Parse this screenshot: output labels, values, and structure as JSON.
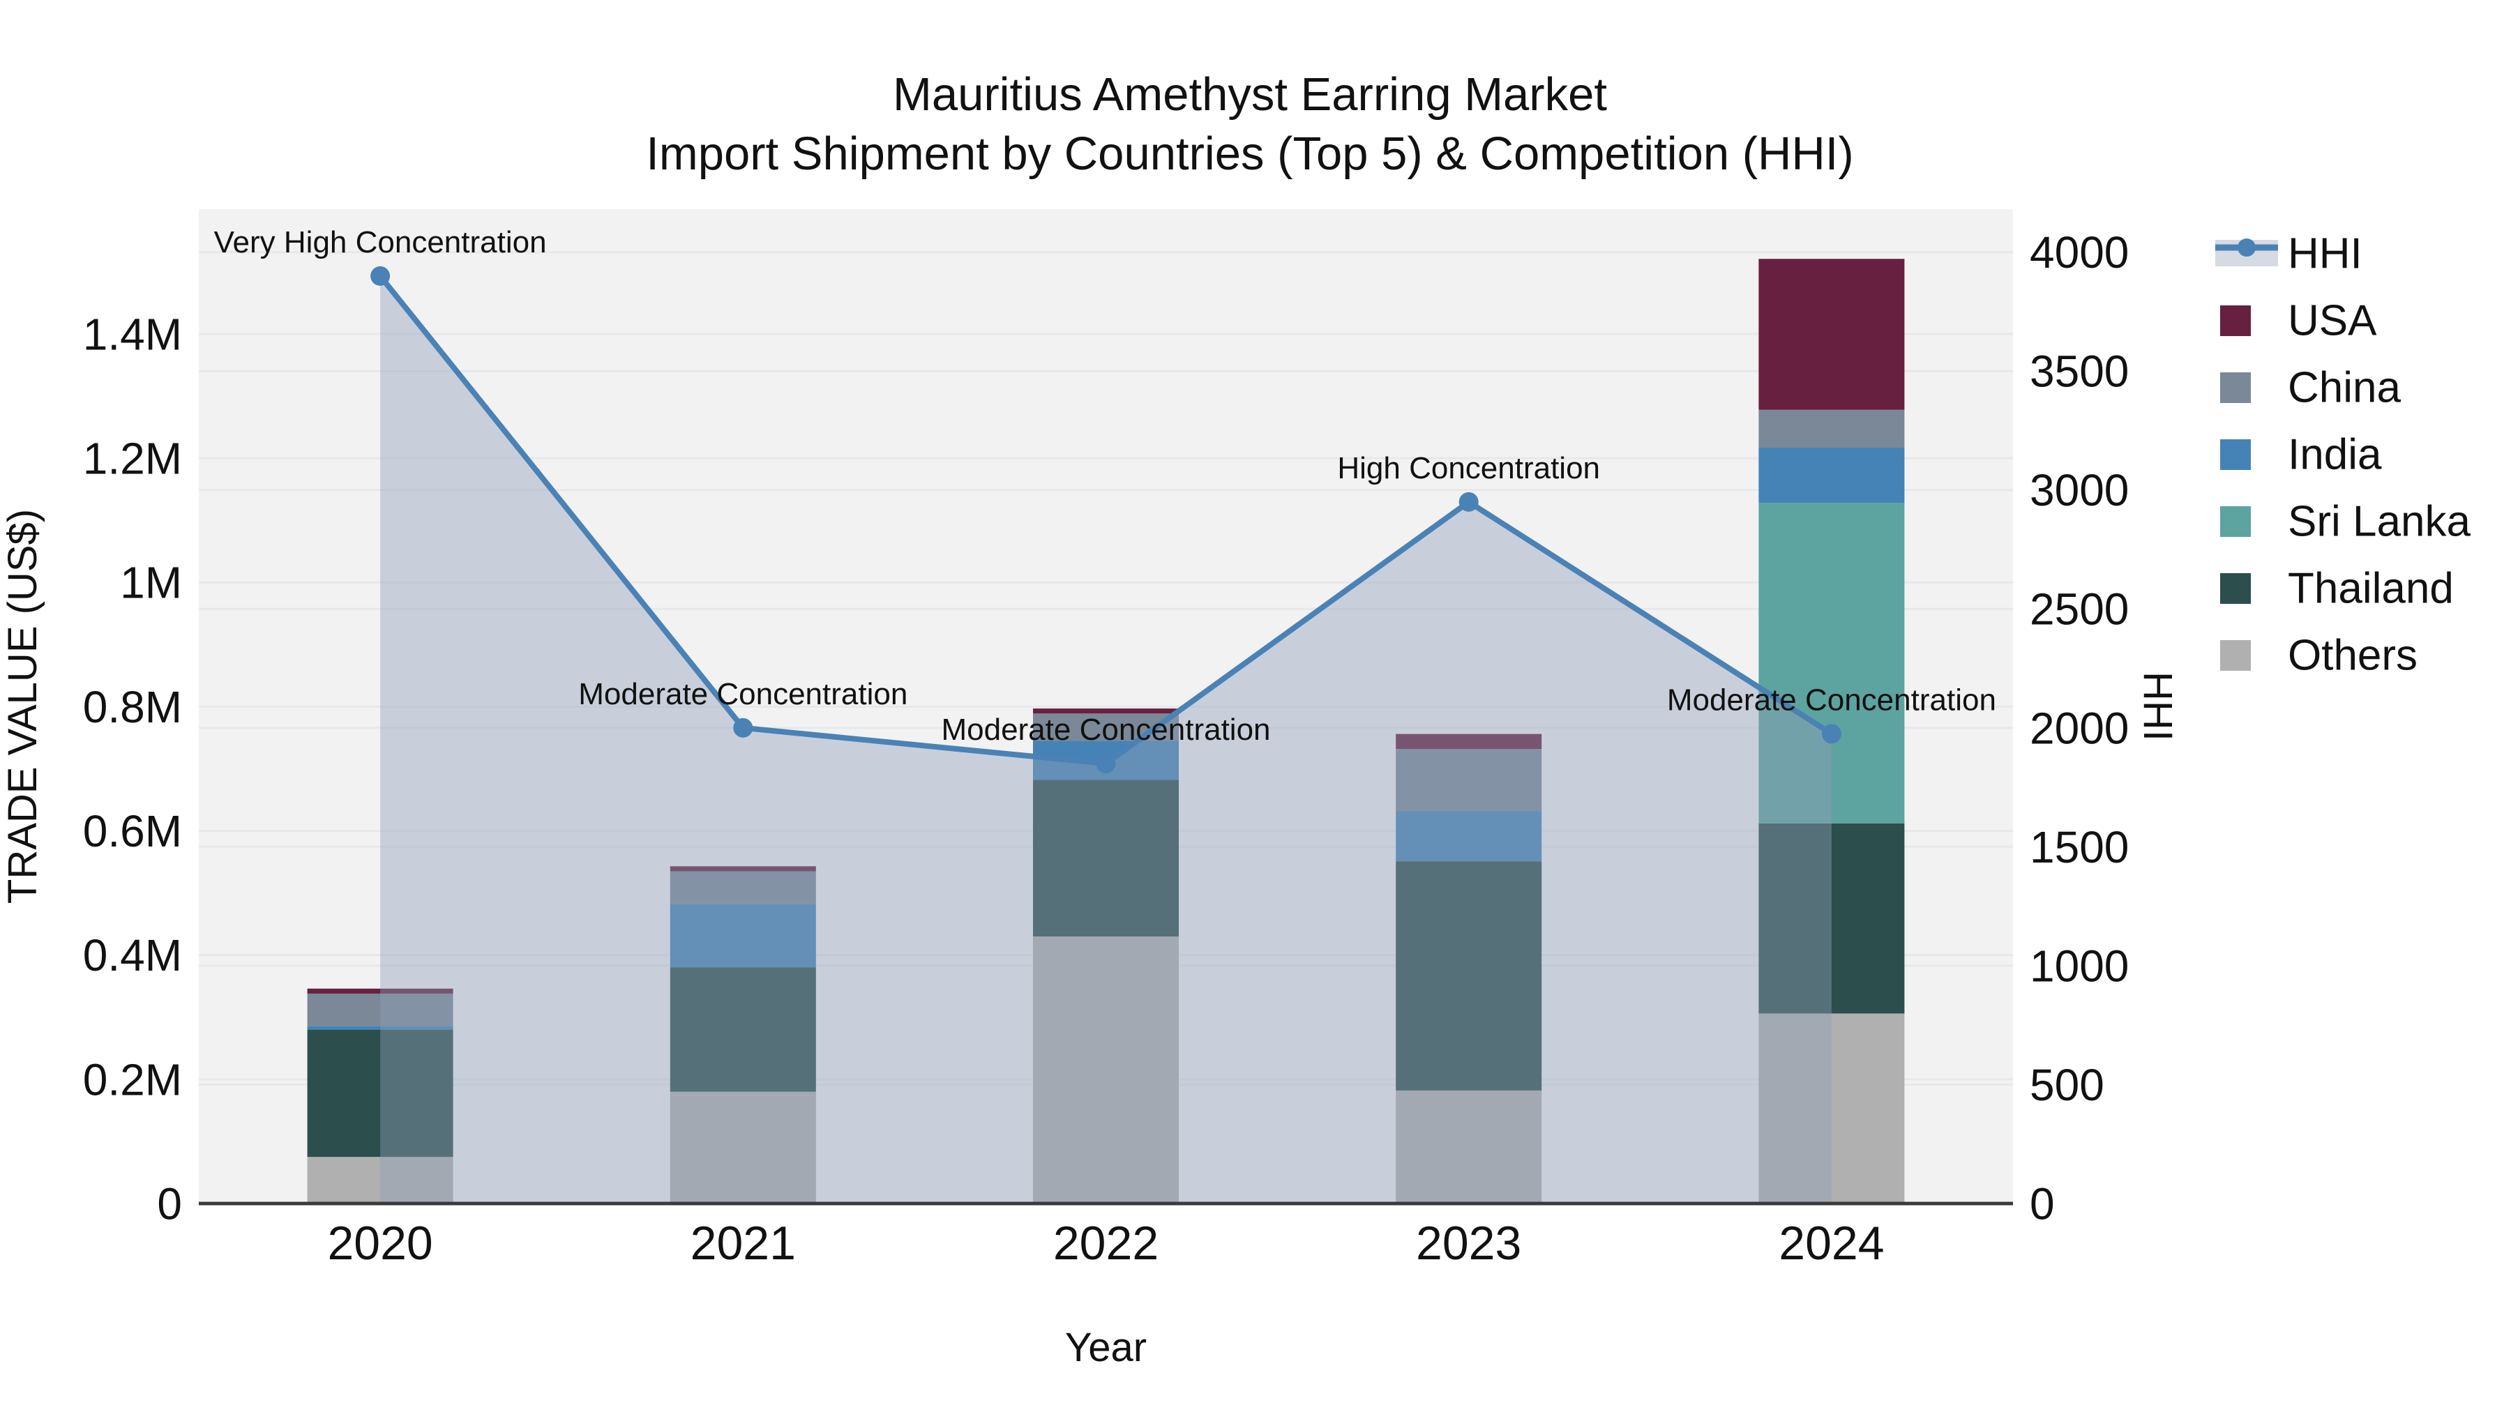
{
  "chart_data": {
    "type": "bar+line-dual-axis",
    "title": {
      "line1": "Mauritius Amethyst Earring Market",
      "line2": "Import Shipment by Countries (Top 5) & Competition (HHI)"
    },
    "xlabel": "Year",
    "ylabel_left": "TRADE VALUE (US$)",
    "ylabel_right": "HHI",
    "categories": [
      "2020",
      "2021",
      "2022",
      "2023",
      "2024"
    ],
    "ylim_left": [
      0,
      1601000
    ],
    "ylim_right": [
      0,
      4181
    ],
    "grid": "on",
    "legend_position": "right",
    "y_left_ticks": [
      {
        "v": 0,
        "label": "0"
      },
      {
        "v": 200000,
        "label": "0.2M"
      },
      {
        "v": 400000,
        "label": "0.4M"
      },
      {
        "v": 600000,
        "label": "0.6M"
      },
      {
        "v": 800000,
        "label": "0.8M"
      },
      {
        "v": 1000000,
        "label": "1M"
      },
      {
        "v": 1200000,
        "label": "1.2M"
      },
      {
        "v": 1400000,
        "label": "1.4M"
      }
    ],
    "y_right_ticks": [
      {
        "v": 0,
        "label": "0"
      },
      {
        "v": 500,
        "label": "500"
      },
      {
        "v": 1000,
        "label": "1000"
      },
      {
        "v": 1500,
        "label": "1500"
      },
      {
        "v": 2000,
        "label": "2000"
      },
      {
        "v": 2500,
        "label": "2500"
      },
      {
        "v": 3000,
        "label": "3000"
      },
      {
        "v": 3500,
        "label": "3500"
      },
      {
        "v": 4000,
        "label": "4000"
      }
    ],
    "series": [
      {
        "name": "Others",
        "color": "#b0b0b0",
        "values": [
          75000,
          180000,
          430000,
          182000,
          306000
        ]
      },
      {
        "name": "Thailand",
        "color": "#2c4e4c",
        "values": [
          205000,
          200000,
          252000,
          369000,
          306000
        ]
      },
      {
        "name": "Sri Lanka",
        "color": "#5da3a0",
        "values": [
          0,
          0,
          0,
          0,
          516000
        ]
      },
      {
        "name": "India",
        "color": "#4583b6",
        "values": [
          6000,
          102000,
          63000,
          81000,
          89000
        ]
      },
      {
        "name": "China",
        "color": "#7a8897",
        "values": [
          52000,
          53000,
          44000,
          100000,
          61000
        ]
      },
      {
        "name": "USA",
        "color": "#67203f",
        "values": [
          8000,
          8000,
          8000,
          24000,
          243000
        ]
      }
    ],
    "hhi": {
      "name": "HHI",
      "color": "#4a82b6",
      "area_fill": "rgba(144,160,184,0.42)",
      "values": [
        3900,
        2000,
        1850,
        2950,
        1975
      ]
    },
    "annotations": [
      {
        "year": "2020",
        "text": "Very High Concentration"
      },
      {
        "year": "2021",
        "text": "Moderate Concentration"
      },
      {
        "year": "2022",
        "text": "Moderate Concentration"
      },
      {
        "year": "2023",
        "text": "High Concentration"
      },
      {
        "year": "2024",
        "text": "Moderate Concentration"
      }
    ],
    "legend": [
      {
        "label": "HHI",
        "type": "line",
        "color": "#4a82b6"
      },
      {
        "label": "USA",
        "type": "patch",
        "color": "#67203f"
      },
      {
        "label": "China",
        "type": "patch",
        "color": "#7a8897"
      },
      {
        "label": "India",
        "type": "patch",
        "color": "#4583b6"
      },
      {
        "label": "Sri Lanka",
        "type": "patch",
        "color": "#5da3a0"
      },
      {
        "label": "Thailand",
        "type": "patch",
        "color": "#2c4e4c"
      },
      {
        "label": "Others",
        "type": "patch",
        "color": "#b0b0b0"
      }
    ],
    "colors": {
      "plot_bg": "#f2f2f3",
      "grid": "#e7e8ea",
      "axis_line": "#3a3a3a",
      "text": "#111111",
      "legend_band": "#d5dae3"
    }
  }
}
